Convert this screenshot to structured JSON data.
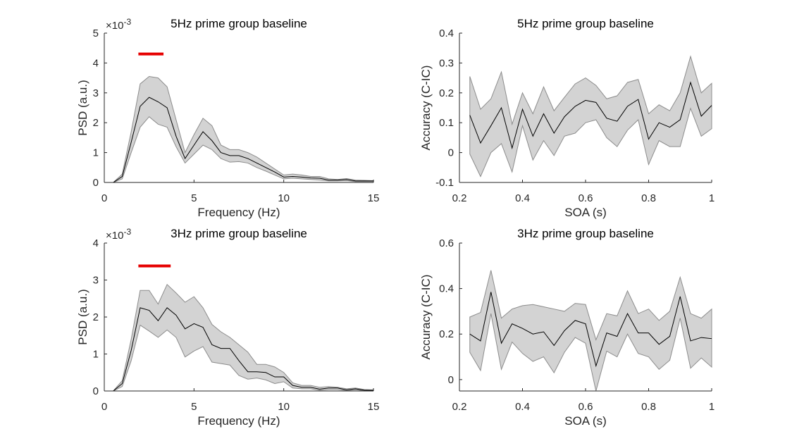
{
  "chart_data": [
    {
      "type": "line",
      "title": "5Hz prime group baseline",
      "xlabel": "Frequency (Hz)",
      "ylabel": "PSD (a.u.)",
      "exponent_label": "×10",
      "exponent_power": "-3",
      "xlim": [
        0,
        15
      ],
      "ylim": [
        0,
        5
      ],
      "xticks": [
        "0",
        "5",
        "10",
        "15"
      ],
      "yticks": [
        "0",
        "1",
        "2",
        "3",
        "4",
        "5"
      ],
      "x": [
        0.5,
        1.0,
        1.5,
        2.0,
        2.5,
        3.0,
        3.5,
        4.0,
        4.5,
        5.0,
        5.5,
        6.0,
        6.5,
        7.0,
        7.5,
        8.0,
        8.5,
        9.0,
        9.5,
        10.0,
        10.5,
        11.0,
        11.5,
        12.0,
        12.5,
        13.0,
        13.5,
        14.0,
        14.5,
        15.0
      ],
      "mean": [
        0.0,
        0.2,
        1.35,
        2.55,
        2.85,
        2.7,
        2.5,
        1.55,
        0.8,
        1.25,
        1.7,
        1.4,
        1.0,
        0.9,
        0.9,
        0.8,
        0.65,
        0.5,
        0.35,
        0.18,
        0.2,
        0.18,
        0.15,
        0.14,
        0.08,
        0.08,
        0.1,
        0.05,
        0.05,
        0.05
      ],
      "upper": [
        0.0,
        0.28,
        1.7,
        3.3,
        3.55,
        3.5,
        3.2,
        2.1,
        1.0,
        1.6,
        2.15,
        1.9,
        1.25,
        1.1,
        1.1,
        1.0,
        0.85,
        0.65,
        0.45,
        0.25,
        0.28,
        0.25,
        0.2,
        0.2,
        0.12,
        0.1,
        0.13,
        0.08,
        0.07,
        0.06
      ],
      "lower": [
        0.0,
        0.12,
        1.0,
        1.85,
        2.2,
        1.95,
        1.85,
        1.2,
        0.65,
        0.95,
        1.25,
        1.1,
        0.8,
        0.68,
        0.7,
        0.65,
        0.5,
        0.38,
        0.25,
        0.12,
        0.14,
        0.12,
        0.1,
        0.08,
        0.05,
        0.05,
        0.06,
        0.03,
        0.03,
        0.03
      ],
      "significance_bar": {
        "x_start": 1.9,
        "x_end": 3.3,
        "y": 4.3,
        "color": "#e60000"
      },
      "line_color": "#000000",
      "band_color": "#d3d3d3",
      "band_edge_color": "#8c8c8c"
    },
    {
      "type": "line",
      "title": "5Hz prime group baseline",
      "xlabel": "SOA (s)",
      "ylabel": "Accuracy (C-IC)",
      "xlim": [
        0.2,
        1.0
      ],
      "ylim": [
        -0.1,
        0.4
      ],
      "xticks": [
        "0.2",
        "0.4",
        "0.6",
        "0.8",
        "1"
      ],
      "yticks": [
        "-0.1",
        "0",
        "0.1",
        "0.2",
        "0.3",
        "0.4"
      ],
      "x": [
        0.233,
        0.267,
        0.3,
        0.333,
        0.367,
        0.4,
        0.433,
        0.467,
        0.5,
        0.533,
        0.567,
        0.6,
        0.633,
        0.667,
        0.7,
        0.733,
        0.767,
        0.8,
        0.833,
        0.867,
        0.9,
        0.933,
        0.967,
        1.0
      ],
      "mean": [
        0.125,
        0.032,
        0.09,
        0.15,
        0.015,
        0.145,
        0.055,
        0.13,
        0.065,
        0.12,
        0.155,
        0.175,
        0.168,
        0.115,
        0.105,
        0.155,
        0.178,
        0.045,
        0.1,
        0.085,
        0.11,
        0.235,
        0.122,
        0.158
      ],
      "upper": [
        0.255,
        0.145,
        0.18,
        0.27,
        0.095,
        0.2,
        0.13,
        0.22,
        0.14,
        0.185,
        0.23,
        0.25,
        0.225,
        0.18,
        0.19,
        0.235,
        0.245,
        0.13,
        0.16,
        0.14,
        0.2,
        0.322,
        0.2,
        0.232
      ],
      "lower": [
        -0.005,
        -0.08,
        0.0,
        0.03,
        -0.065,
        0.09,
        -0.025,
        0.04,
        -0.01,
        0.055,
        0.065,
        0.1,
        0.11,
        0.05,
        0.02,
        0.075,
        0.11,
        -0.04,
        0.04,
        0.02,
        0.02,
        0.148,
        0.055,
        0.08
      ],
      "line_color": "#000000",
      "band_color": "#d3d3d3",
      "band_edge_color": "#8c8c8c"
    },
    {
      "type": "line",
      "title": "3Hz prime group baseline",
      "xlabel": "Frequency (Hz)",
      "ylabel": "PSD (a.u.)",
      "exponent_label": "×10",
      "exponent_power": "-3",
      "xlim": [
        0,
        15
      ],
      "ylim": [
        0,
        4
      ],
      "xticks": [
        "0",
        "5",
        "10",
        "15"
      ],
      "yticks": [
        "0",
        "1",
        "2",
        "3",
        "4"
      ],
      "x": [
        0.5,
        1.0,
        1.5,
        2.0,
        2.5,
        3.0,
        3.5,
        4.0,
        4.5,
        5.0,
        5.5,
        6.0,
        6.5,
        7.0,
        7.5,
        8.0,
        8.5,
        9.0,
        9.5,
        10.0,
        10.5,
        11.0,
        11.5,
        12.0,
        12.5,
        13.0,
        13.5,
        14.0,
        14.5,
        15.0
      ],
      "mean": [
        0.0,
        0.2,
        1.1,
        2.25,
        2.18,
        1.9,
        2.25,
        2.05,
        1.68,
        1.82,
        1.72,
        1.25,
        1.15,
        1.15,
        0.82,
        0.52,
        0.52,
        0.5,
        0.38,
        0.38,
        0.15,
        0.1,
        0.1,
        0.05,
        0.08,
        0.08,
        0.03,
        0.06,
        0.02,
        0.02
      ],
      "upper": [
        0.0,
        0.28,
        1.4,
        2.72,
        2.72,
        2.35,
        2.88,
        2.65,
        2.4,
        2.55,
        2.25,
        1.8,
        1.6,
        1.45,
        1.25,
        1.05,
        0.72,
        0.72,
        0.65,
        0.5,
        0.22,
        0.15,
        0.15,
        0.1,
        0.12,
        0.1,
        0.06,
        0.08,
        0.04,
        0.03
      ],
      "lower": [
        0.0,
        0.12,
        0.82,
        1.78,
        1.62,
        1.45,
        1.65,
        1.45,
        0.92,
        1.08,
        1.2,
        0.78,
        0.74,
        0.7,
        0.42,
        0.32,
        0.35,
        0.3,
        0.2,
        0.25,
        0.08,
        0.06,
        0.06,
        0.02,
        0.04,
        0.04,
        0.01,
        0.03,
        0.01,
        0.01
      ],
      "significance_bar": {
        "x_start": 1.9,
        "x_end": 3.7,
        "y": 3.38,
        "color": "#e60000"
      },
      "line_color": "#000000",
      "band_color": "#d3d3d3",
      "band_edge_color": "#8c8c8c"
    },
    {
      "type": "line",
      "title": "3Hz prime group baseline",
      "xlabel": "SOA (s)",
      "ylabel": "Accuracy (C-IC)",
      "xlim": [
        0.2,
        1.0
      ],
      "ylim": [
        -0.05,
        0.6
      ],
      "xticks": [
        "0.2",
        "0.4",
        "0.6",
        "0.8",
        "1"
      ],
      "yticks": [
        "0",
        "0.2",
        "0.4",
        "0.6"
      ],
      "ytick_values": [
        0,
        0.2,
        0.4,
        0.6
      ],
      "x": [
        0.233,
        0.267,
        0.3,
        0.333,
        0.367,
        0.4,
        0.433,
        0.467,
        0.5,
        0.533,
        0.567,
        0.6,
        0.633,
        0.667,
        0.7,
        0.733,
        0.767,
        0.8,
        0.833,
        0.867,
        0.9,
        0.933,
        0.967,
        1.0
      ],
      "mean": [
        0.2,
        0.17,
        0.385,
        0.16,
        0.245,
        0.225,
        0.2,
        0.21,
        0.15,
        0.215,
        0.26,
        0.245,
        0.06,
        0.205,
        0.19,
        0.29,
        0.205,
        0.205,
        0.155,
        0.19,
        0.365,
        0.17,
        0.185,
        0.18
      ],
      "upper": [
        0.275,
        0.295,
        0.48,
        0.27,
        0.31,
        0.325,
        0.33,
        0.32,
        0.31,
        0.3,
        0.335,
        0.33,
        0.175,
        0.29,
        0.28,
        0.39,
        0.29,
        0.31,
        0.26,
        0.3,
        0.45,
        0.29,
        0.27,
        0.31
      ],
      "lower": [
        0.12,
        0.04,
        0.29,
        0.045,
        0.165,
        0.115,
        0.08,
        0.1,
        0.03,
        0.12,
        0.185,
        0.16,
        -0.05,
        0.125,
        0.1,
        0.2,
        0.115,
        0.1,
        0.045,
        0.085,
        0.27,
        0.05,
        0.095,
        0.055
      ],
      "line_color": "#000000",
      "band_color": "#d3d3d3",
      "band_edge_color": "#8c8c8c"
    }
  ]
}
